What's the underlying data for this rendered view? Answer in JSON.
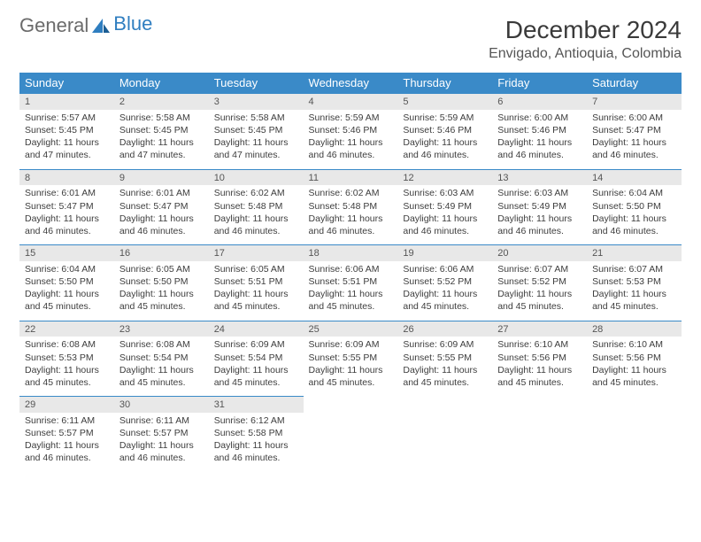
{
  "logo": {
    "text_gray": "General",
    "text_blue": "Blue"
  },
  "header": {
    "title": "December 2024",
    "location": "Envigado, Antioquia, Colombia"
  },
  "weekdays": [
    "Sunday",
    "Monday",
    "Tuesday",
    "Wednesday",
    "Thursday",
    "Friday",
    "Saturday"
  ],
  "colors": {
    "header_bg": "#3a8ac8",
    "accent_line": "#3a8ac8",
    "daynum_bg": "#e8e8e8",
    "logo_blue": "#2f7ec0"
  },
  "weeks": [
    [
      {
        "day": "1",
        "sunrise": "Sunrise: 5:57 AM",
        "sunset": "Sunset: 5:45 PM",
        "daylight": "Daylight: 11 hours and 47 minutes."
      },
      {
        "day": "2",
        "sunrise": "Sunrise: 5:58 AM",
        "sunset": "Sunset: 5:45 PM",
        "daylight": "Daylight: 11 hours and 47 minutes."
      },
      {
        "day": "3",
        "sunrise": "Sunrise: 5:58 AM",
        "sunset": "Sunset: 5:45 PM",
        "daylight": "Daylight: 11 hours and 47 minutes."
      },
      {
        "day": "4",
        "sunrise": "Sunrise: 5:59 AM",
        "sunset": "Sunset: 5:46 PM",
        "daylight": "Daylight: 11 hours and 46 minutes."
      },
      {
        "day": "5",
        "sunrise": "Sunrise: 5:59 AM",
        "sunset": "Sunset: 5:46 PM",
        "daylight": "Daylight: 11 hours and 46 minutes."
      },
      {
        "day": "6",
        "sunrise": "Sunrise: 6:00 AM",
        "sunset": "Sunset: 5:46 PM",
        "daylight": "Daylight: 11 hours and 46 minutes."
      },
      {
        "day": "7",
        "sunrise": "Sunrise: 6:00 AM",
        "sunset": "Sunset: 5:47 PM",
        "daylight": "Daylight: 11 hours and 46 minutes."
      }
    ],
    [
      {
        "day": "8",
        "sunrise": "Sunrise: 6:01 AM",
        "sunset": "Sunset: 5:47 PM",
        "daylight": "Daylight: 11 hours and 46 minutes."
      },
      {
        "day": "9",
        "sunrise": "Sunrise: 6:01 AM",
        "sunset": "Sunset: 5:47 PM",
        "daylight": "Daylight: 11 hours and 46 minutes."
      },
      {
        "day": "10",
        "sunrise": "Sunrise: 6:02 AM",
        "sunset": "Sunset: 5:48 PM",
        "daylight": "Daylight: 11 hours and 46 minutes."
      },
      {
        "day": "11",
        "sunrise": "Sunrise: 6:02 AM",
        "sunset": "Sunset: 5:48 PM",
        "daylight": "Daylight: 11 hours and 46 minutes."
      },
      {
        "day": "12",
        "sunrise": "Sunrise: 6:03 AM",
        "sunset": "Sunset: 5:49 PM",
        "daylight": "Daylight: 11 hours and 46 minutes."
      },
      {
        "day": "13",
        "sunrise": "Sunrise: 6:03 AM",
        "sunset": "Sunset: 5:49 PM",
        "daylight": "Daylight: 11 hours and 46 minutes."
      },
      {
        "day": "14",
        "sunrise": "Sunrise: 6:04 AM",
        "sunset": "Sunset: 5:50 PM",
        "daylight": "Daylight: 11 hours and 46 minutes."
      }
    ],
    [
      {
        "day": "15",
        "sunrise": "Sunrise: 6:04 AM",
        "sunset": "Sunset: 5:50 PM",
        "daylight": "Daylight: 11 hours and 45 minutes."
      },
      {
        "day": "16",
        "sunrise": "Sunrise: 6:05 AM",
        "sunset": "Sunset: 5:50 PM",
        "daylight": "Daylight: 11 hours and 45 minutes."
      },
      {
        "day": "17",
        "sunrise": "Sunrise: 6:05 AM",
        "sunset": "Sunset: 5:51 PM",
        "daylight": "Daylight: 11 hours and 45 minutes."
      },
      {
        "day": "18",
        "sunrise": "Sunrise: 6:06 AM",
        "sunset": "Sunset: 5:51 PM",
        "daylight": "Daylight: 11 hours and 45 minutes."
      },
      {
        "day": "19",
        "sunrise": "Sunrise: 6:06 AM",
        "sunset": "Sunset: 5:52 PM",
        "daylight": "Daylight: 11 hours and 45 minutes."
      },
      {
        "day": "20",
        "sunrise": "Sunrise: 6:07 AM",
        "sunset": "Sunset: 5:52 PM",
        "daylight": "Daylight: 11 hours and 45 minutes."
      },
      {
        "day": "21",
        "sunrise": "Sunrise: 6:07 AM",
        "sunset": "Sunset: 5:53 PM",
        "daylight": "Daylight: 11 hours and 45 minutes."
      }
    ],
    [
      {
        "day": "22",
        "sunrise": "Sunrise: 6:08 AM",
        "sunset": "Sunset: 5:53 PM",
        "daylight": "Daylight: 11 hours and 45 minutes."
      },
      {
        "day": "23",
        "sunrise": "Sunrise: 6:08 AM",
        "sunset": "Sunset: 5:54 PM",
        "daylight": "Daylight: 11 hours and 45 minutes."
      },
      {
        "day": "24",
        "sunrise": "Sunrise: 6:09 AM",
        "sunset": "Sunset: 5:54 PM",
        "daylight": "Daylight: 11 hours and 45 minutes."
      },
      {
        "day": "25",
        "sunrise": "Sunrise: 6:09 AM",
        "sunset": "Sunset: 5:55 PM",
        "daylight": "Daylight: 11 hours and 45 minutes."
      },
      {
        "day": "26",
        "sunrise": "Sunrise: 6:09 AM",
        "sunset": "Sunset: 5:55 PM",
        "daylight": "Daylight: 11 hours and 45 minutes."
      },
      {
        "day": "27",
        "sunrise": "Sunrise: 6:10 AM",
        "sunset": "Sunset: 5:56 PM",
        "daylight": "Daylight: 11 hours and 45 minutes."
      },
      {
        "day": "28",
        "sunrise": "Sunrise: 6:10 AM",
        "sunset": "Sunset: 5:56 PM",
        "daylight": "Daylight: 11 hours and 45 minutes."
      }
    ],
    [
      {
        "day": "29",
        "sunrise": "Sunrise: 6:11 AM",
        "sunset": "Sunset: 5:57 PM",
        "daylight": "Daylight: 11 hours and 46 minutes."
      },
      {
        "day": "30",
        "sunrise": "Sunrise: 6:11 AM",
        "sunset": "Sunset: 5:57 PM",
        "daylight": "Daylight: 11 hours and 46 minutes."
      },
      {
        "day": "31",
        "sunrise": "Sunrise: 6:12 AM",
        "sunset": "Sunset: 5:58 PM",
        "daylight": "Daylight: 11 hours and 46 minutes."
      },
      null,
      null,
      null,
      null
    ]
  ]
}
